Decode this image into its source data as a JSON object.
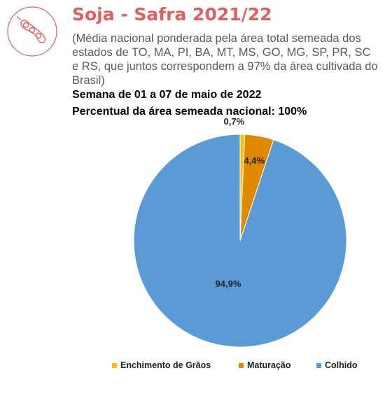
{
  "header": {
    "title": "Soja - Safra 2021/22",
    "subtitle": "(Média nacional ponderada pela área total semeada dos estados de TO, MA, PI, BA, MT, MS, GO, MG, SP, PR, SC e RS, que juntos correspondem a 97% da área cultivada do Brasil)",
    "week": "Semana de 01 a 07 de maio de 2022",
    "planted_pct": "Percentual da área semeada nacional: 100%",
    "title_color": "#e06060",
    "logo_icon": "soybean-pod-icon"
  },
  "chart_data": {
    "type": "pie",
    "title": "",
    "slices": [
      {
        "name": "Enchimento de Grãos",
        "value": 0.7,
        "label": "0,7%",
        "color": "#ffc000"
      },
      {
        "name": "Maturação",
        "value": 4.4,
        "label": "4,4%",
        "color": "#e08a00"
      },
      {
        "name": "Colhido",
        "value": 94.9,
        "label": "94,9%",
        "color": "#5b9bd5"
      }
    ],
    "start_angle_deg": 0,
    "direction": "clockwise",
    "legend_position": "bottom"
  }
}
